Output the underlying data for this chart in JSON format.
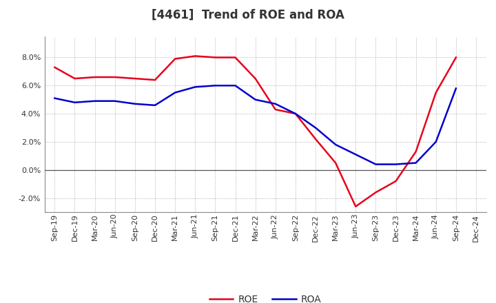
{
  "title": "[4461]  Trend of ROE and ROA",
  "x_labels": [
    "Sep-19",
    "Dec-19",
    "Mar-20",
    "Jun-20",
    "Sep-20",
    "Dec-20",
    "Mar-21",
    "Jun-21",
    "Sep-21",
    "Dec-21",
    "Mar-22",
    "Jun-22",
    "Sep-22",
    "Dec-22",
    "Mar-23",
    "Jun-23",
    "Sep-23",
    "Dec-23",
    "Mar-24",
    "Jun-24",
    "Sep-24",
    "Dec-24"
  ],
  "roe": [
    7.3,
    6.5,
    6.6,
    6.6,
    6.5,
    6.4,
    7.9,
    8.1,
    8.0,
    8.0,
    6.5,
    4.3,
    4.0,
    2.2,
    0.5,
    -2.6,
    -1.6,
    -0.8,
    1.3,
    5.5,
    8.0,
    null
  ],
  "roa": [
    5.1,
    4.8,
    4.9,
    4.9,
    4.7,
    4.6,
    5.5,
    5.9,
    6.0,
    6.0,
    5.0,
    4.7,
    4.0,
    3.0,
    1.8,
    1.1,
    0.4,
    0.4,
    0.5,
    2.0,
    5.8,
    null
  ],
  "roe_color": "#e8001c",
  "roa_color": "#0000cc",
  "ylim": [
    -3.0,
    9.5
  ],
  "yticks": [
    -2.0,
    0.0,
    2.0,
    4.0,
    6.0,
    8.0
  ],
  "background_color": "#ffffff",
  "grid_color": "#aaaaaa",
  "title_fontsize": 12,
  "axis_fontsize": 8,
  "legend_fontsize": 10
}
